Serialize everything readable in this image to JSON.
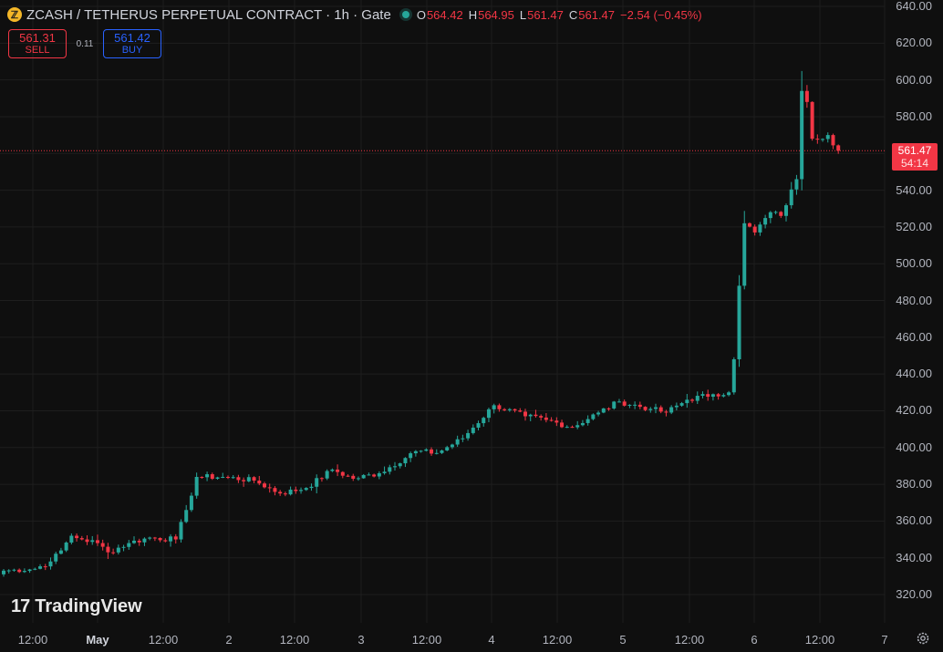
{
  "header": {
    "logo_char": "ℤ",
    "symbol": "ZCASH / TETHERUS PERPETUAL CONTRACT · 1h · Gate",
    "o_key": "O",
    "o_val": "564.42",
    "h_key": "H",
    "h_val": "564.95",
    "l_key": "L",
    "l_val": "561.47",
    "c_key": "C",
    "c_val": "561.47",
    "change": "−2.54 (−0.45%)"
  },
  "trade": {
    "sell_price": "561.31",
    "sell_label": "SELL",
    "spread": "0.11",
    "buy_price": "561.42",
    "buy_label": "BUY"
  },
  "last_price": {
    "price": "561.47",
    "countdown": "54:14"
  },
  "logo": {
    "mark": "17",
    "text": "TradingView"
  },
  "icons": {
    "settings": "gear-icon"
  },
  "colors": {
    "up": "#26a69a",
    "down": "#f23645",
    "background": "#0f0f0f",
    "grid": "#1e1e1e",
    "buy": "#2962ff"
  },
  "y_axis": {
    "labels": [
      "640.00",
      "620.00",
      "600.00",
      "580.00",
      "560.00",
      "540.00",
      "520.00",
      "500.00",
      "480.00",
      "460.00",
      "440.00",
      "420.00",
      "400.00",
      "380.00",
      "360.00",
      "340.00",
      "320.00"
    ]
  },
  "x_axis": {
    "labels": [
      {
        "text": "12:00",
        "bold": false
      },
      {
        "text": "May",
        "bold": true
      },
      {
        "text": "12:00",
        "bold": false
      },
      {
        "text": "2",
        "bold": false
      },
      {
        "text": "12:00",
        "bold": false
      },
      {
        "text": "3",
        "bold": false
      },
      {
        "text": "12:00",
        "bold": false
      },
      {
        "text": "4",
        "bold": false
      },
      {
        "text": "12:00",
        "bold": false
      },
      {
        "text": "5",
        "bold": false
      },
      {
        "text": "12:00",
        "bold": false
      },
      {
        "text": "6",
        "bold": false
      },
      {
        "text": "12:00",
        "bold": false
      },
      {
        "text": "7",
        "bold": false
      }
    ]
  },
  "chart_data": {
    "type": "candlestick",
    "interval": "1h",
    "y_min": 320,
    "y_max": 640,
    "last_close": 561.47,
    "ticks": [
      320,
      340,
      360,
      380,
      400,
      420,
      440,
      460,
      480,
      500,
      520,
      540,
      560,
      580,
      600,
      620,
      640
    ],
    "anchors": [
      {
        "i": 0,
        "c": 333
      },
      {
        "i": 6,
        "c": 334
      },
      {
        "i": 9,
        "c": 338
      },
      {
        "i": 11,
        "c": 344
      },
      {
        "i": 13,
        "c": 352
      },
      {
        "i": 15,
        "c": 350
      },
      {
        "i": 18,
        "c": 348
      },
      {
        "i": 20,
        "c": 343
      },
      {
        "i": 24,
        "c": 348
      },
      {
        "i": 28,
        "c": 351
      },
      {
        "i": 33,
        "c": 350
      },
      {
        "i": 35,
        "c": 366
      },
      {
        "i": 37,
        "c": 384
      },
      {
        "i": 42,
        "c": 384
      },
      {
        "i": 48,
        "c": 382
      },
      {
        "i": 53,
        "c": 375
      },
      {
        "i": 58,
        "c": 378
      },
      {
        "i": 63,
        "c": 388
      },
      {
        "i": 67,
        "c": 383
      },
      {
        "i": 72,
        "c": 386
      },
      {
        "i": 79,
        "c": 398
      },
      {
        "i": 83,
        "c": 397
      },
      {
        "i": 88,
        "c": 405
      },
      {
        "i": 94,
        "c": 423
      },
      {
        "i": 100,
        "c": 417
      },
      {
        "i": 104,
        "c": 415
      },
      {
        "i": 109,
        "c": 411
      },
      {
        "i": 114,
        "c": 419
      },
      {
        "i": 118,
        "c": 425
      },
      {
        "i": 124,
        "c": 421
      },
      {
        "i": 127,
        "c": 419
      },
      {
        "i": 131,
        "c": 426
      },
      {
        "i": 136,
        "c": 429
      },
      {
        "i": 139,
        "c": 430
      },
      {
        "i": 140,
        "c": 448
      },
      {
        "i": 141,
        "c": 488
      },
      {
        "i": 142,
        "c": 522
      },
      {
        "i": 144,
        "c": 517
      },
      {
        "i": 147,
        "c": 528
      },
      {
        "i": 149,
        "c": 526
      },
      {
        "i": 152,
        "c": 546
      },
      {
        "i": 153,
        "c": 594
      },
      {
        "i": 154,
        "c": 588
      },
      {
        "i": 155,
        "c": 568
      },
      {
        "i": 158,
        "c": 570
      },
      {
        "i": 160,
        "c": 561.47
      }
    ]
  }
}
